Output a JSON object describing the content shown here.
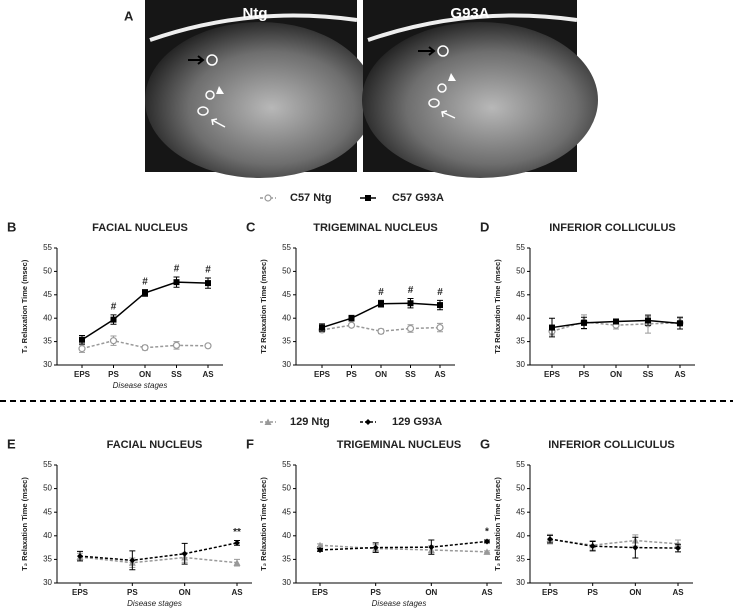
{
  "panel_a": {
    "label": "A",
    "images": [
      "Ntg",
      "G93A"
    ]
  },
  "chart_data": [
    {
      "type": "line",
      "panel": "B",
      "title": "FACIAL NUCLEUS",
      "ylabel": "T₂ Relaxation Time (msec)",
      "xlabel": "Disease stages",
      "categories": [
        "EPS",
        "PS",
        "ON",
        "SS",
        "AS"
      ],
      "ylim": [
        30,
        55
      ],
      "yticks": [
        30,
        35,
        40,
        45,
        50,
        55
      ],
      "series": [
        {
          "name": "C57 Ntg",
          "color": "#999999",
          "dash": true,
          "marker": "circle",
          "values": [
            33.5,
            35.2,
            33.7,
            34.2,
            34.1
          ],
          "errors": [
            0.8,
            1.0,
            0.5,
            0.8,
            0.3
          ]
        },
        {
          "name": "C57 G93A",
          "color": "#000000",
          "dash": false,
          "marker": "square",
          "values": [
            35.4,
            39.7,
            45.4,
            47.7,
            47.5
          ],
          "errors": [
            0.9,
            1.0,
            0.7,
            1.1,
            1.1
          ]
        }
      ],
      "significance": [
        null,
        "#",
        "#",
        "#",
        "#"
      ]
    },
    {
      "type": "line",
      "panel": "C",
      "title": "TRIGEMINAL NUCLEUS",
      "ylabel": "T2 Relaxation Time (msec)",
      "categories": [
        "EPS",
        "PS",
        "ON",
        "SS",
        "AS"
      ],
      "ylim": [
        30,
        55
      ],
      "yticks": [
        30,
        35,
        40,
        45,
        50,
        55
      ],
      "series": [
        {
          "name": "C57 Ntg",
          "color": "#999999",
          "dash": true,
          "marker": "circle",
          "values": [
            37.5,
            38.5,
            37.2,
            37.8,
            38.0
          ],
          "errors": [
            0.5,
            0.3,
            0.5,
            0.8,
            0.9
          ]
        },
        {
          "name": "C57 G93A",
          "color": "#000000",
          "dash": false,
          "marker": "square",
          "values": [
            38.0,
            40.0,
            43.1,
            43.2,
            42.8
          ],
          "errors": [
            0.8,
            0.6,
            0.7,
            1.0,
            1.0
          ]
        }
      ],
      "significance": [
        null,
        null,
        "#",
        "#",
        "#"
      ]
    },
    {
      "type": "line",
      "panel": "D",
      "title": "INFERIOR COLLICULUS",
      "ylabel": "T2 Relaxation Time (msec)",
      "categories": [
        "EPS",
        "PS",
        "ON",
        "SS",
        "AS"
      ],
      "ylim": [
        30,
        55
      ],
      "yticks": [
        30,
        35,
        40,
        45,
        50,
        55
      ],
      "series": [
        {
          "name": "C57 Ntg",
          "color": "#999999",
          "dash": true,
          "marker": "circle",
          "values": [
            37.2,
            39.2,
            38.5,
            38.8,
            39.0
          ],
          "errors": [
            0.8,
            1.5,
            0.8,
            2.0,
            1.3
          ]
        },
        {
          "name": "C57 G93A",
          "color": "#000000",
          "dash": false,
          "marker": "square",
          "values": [
            38.0,
            39.0,
            39.3,
            39.5,
            38.9
          ],
          "errors": [
            2.0,
            1.2,
            0.5,
            1.0,
            1.2
          ]
        }
      ]
    },
    {
      "type": "line",
      "panel": "E",
      "title": "FACIAL NUCLEUS",
      "ylabel": "T₂ Relaxation Time (msec)",
      "xlabel": "Disease stages",
      "categories": [
        "EPS",
        "PS",
        "ON",
        "AS"
      ],
      "ylim": [
        30,
        55
      ],
      "yticks": [
        30,
        35,
        40,
        45,
        50,
        55
      ],
      "series": [
        {
          "name": "129 Ntg",
          "color": "#999999",
          "dash": true,
          "marker": "triangle",
          "values": [
            35.5,
            34.3,
            35.4,
            34.3
          ],
          "errors": [
            0.8,
            1.0,
            1.0,
            0.7
          ]
        },
        {
          "name": "129 G93A",
          "color": "#000000",
          "dash": true,
          "marker": "diamond",
          "values": [
            35.7,
            34.8,
            36.2,
            38.5
          ],
          "errors": [
            1.0,
            2.0,
            2.2,
            0.5
          ]
        }
      ],
      "significance": [
        null,
        null,
        null,
        "**"
      ]
    },
    {
      "type": "line",
      "panel": "F",
      "title": "TRIGEMINAL NUCLEUS",
      "ylabel": "T₂ Relaxation Time (msec)",
      "xlabel": "Disease stages",
      "categories": [
        "EPS",
        "PS",
        "ON",
        "AS"
      ],
      "ylim": [
        30,
        55
      ],
      "yticks": [
        30,
        35,
        40,
        45,
        50,
        55
      ],
      "series": [
        {
          "name": "129 Ntg",
          "color": "#999999",
          "dash": true,
          "marker": "triangle",
          "values": [
            38.0,
            37.3,
            37.0,
            36.6
          ],
          "errors": [
            0.3,
            0.8,
            0.9,
            0.2
          ]
        },
        {
          "name": "129 G93A",
          "color": "#000000",
          "dash": true,
          "marker": "diamond",
          "values": [
            37.0,
            37.5,
            37.6,
            38.8
          ],
          "errors": [
            0.3,
            1.0,
            1.5,
            0.3
          ]
        }
      ],
      "significance": [
        null,
        null,
        null,
        "*"
      ]
    },
    {
      "type": "line",
      "panel": "G",
      "title": "INFERIOR COLLICULUS",
      "ylabel": "T₂ Relaxation Time (msec)",
      "categories": [
        "EPS",
        "PS",
        "ON",
        "AS"
      ],
      "ylim": [
        30,
        55
      ],
      "yticks": [
        30,
        35,
        40,
        45,
        50,
        55
      ],
      "series": [
        {
          "name": "129 Ntg",
          "color": "#999999",
          "dash": true,
          "marker": "triangle",
          "values": [
            39.3,
            38.0,
            39.0,
            38.3
          ],
          "errors": [
            1.0,
            1.0,
            1.2,
            0.8
          ]
        },
        {
          "name": "129 G93A",
          "color": "#000000",
          "dash": true,
          "marker": "diamond",
          "values": [
            39.3,
            37.8,
            37.5,
            37.4
          ],
          "errors": [
            0.8,
            1.0,
            2.2,
            0.8
          ]
        }
      ]
    }
  ]
}
